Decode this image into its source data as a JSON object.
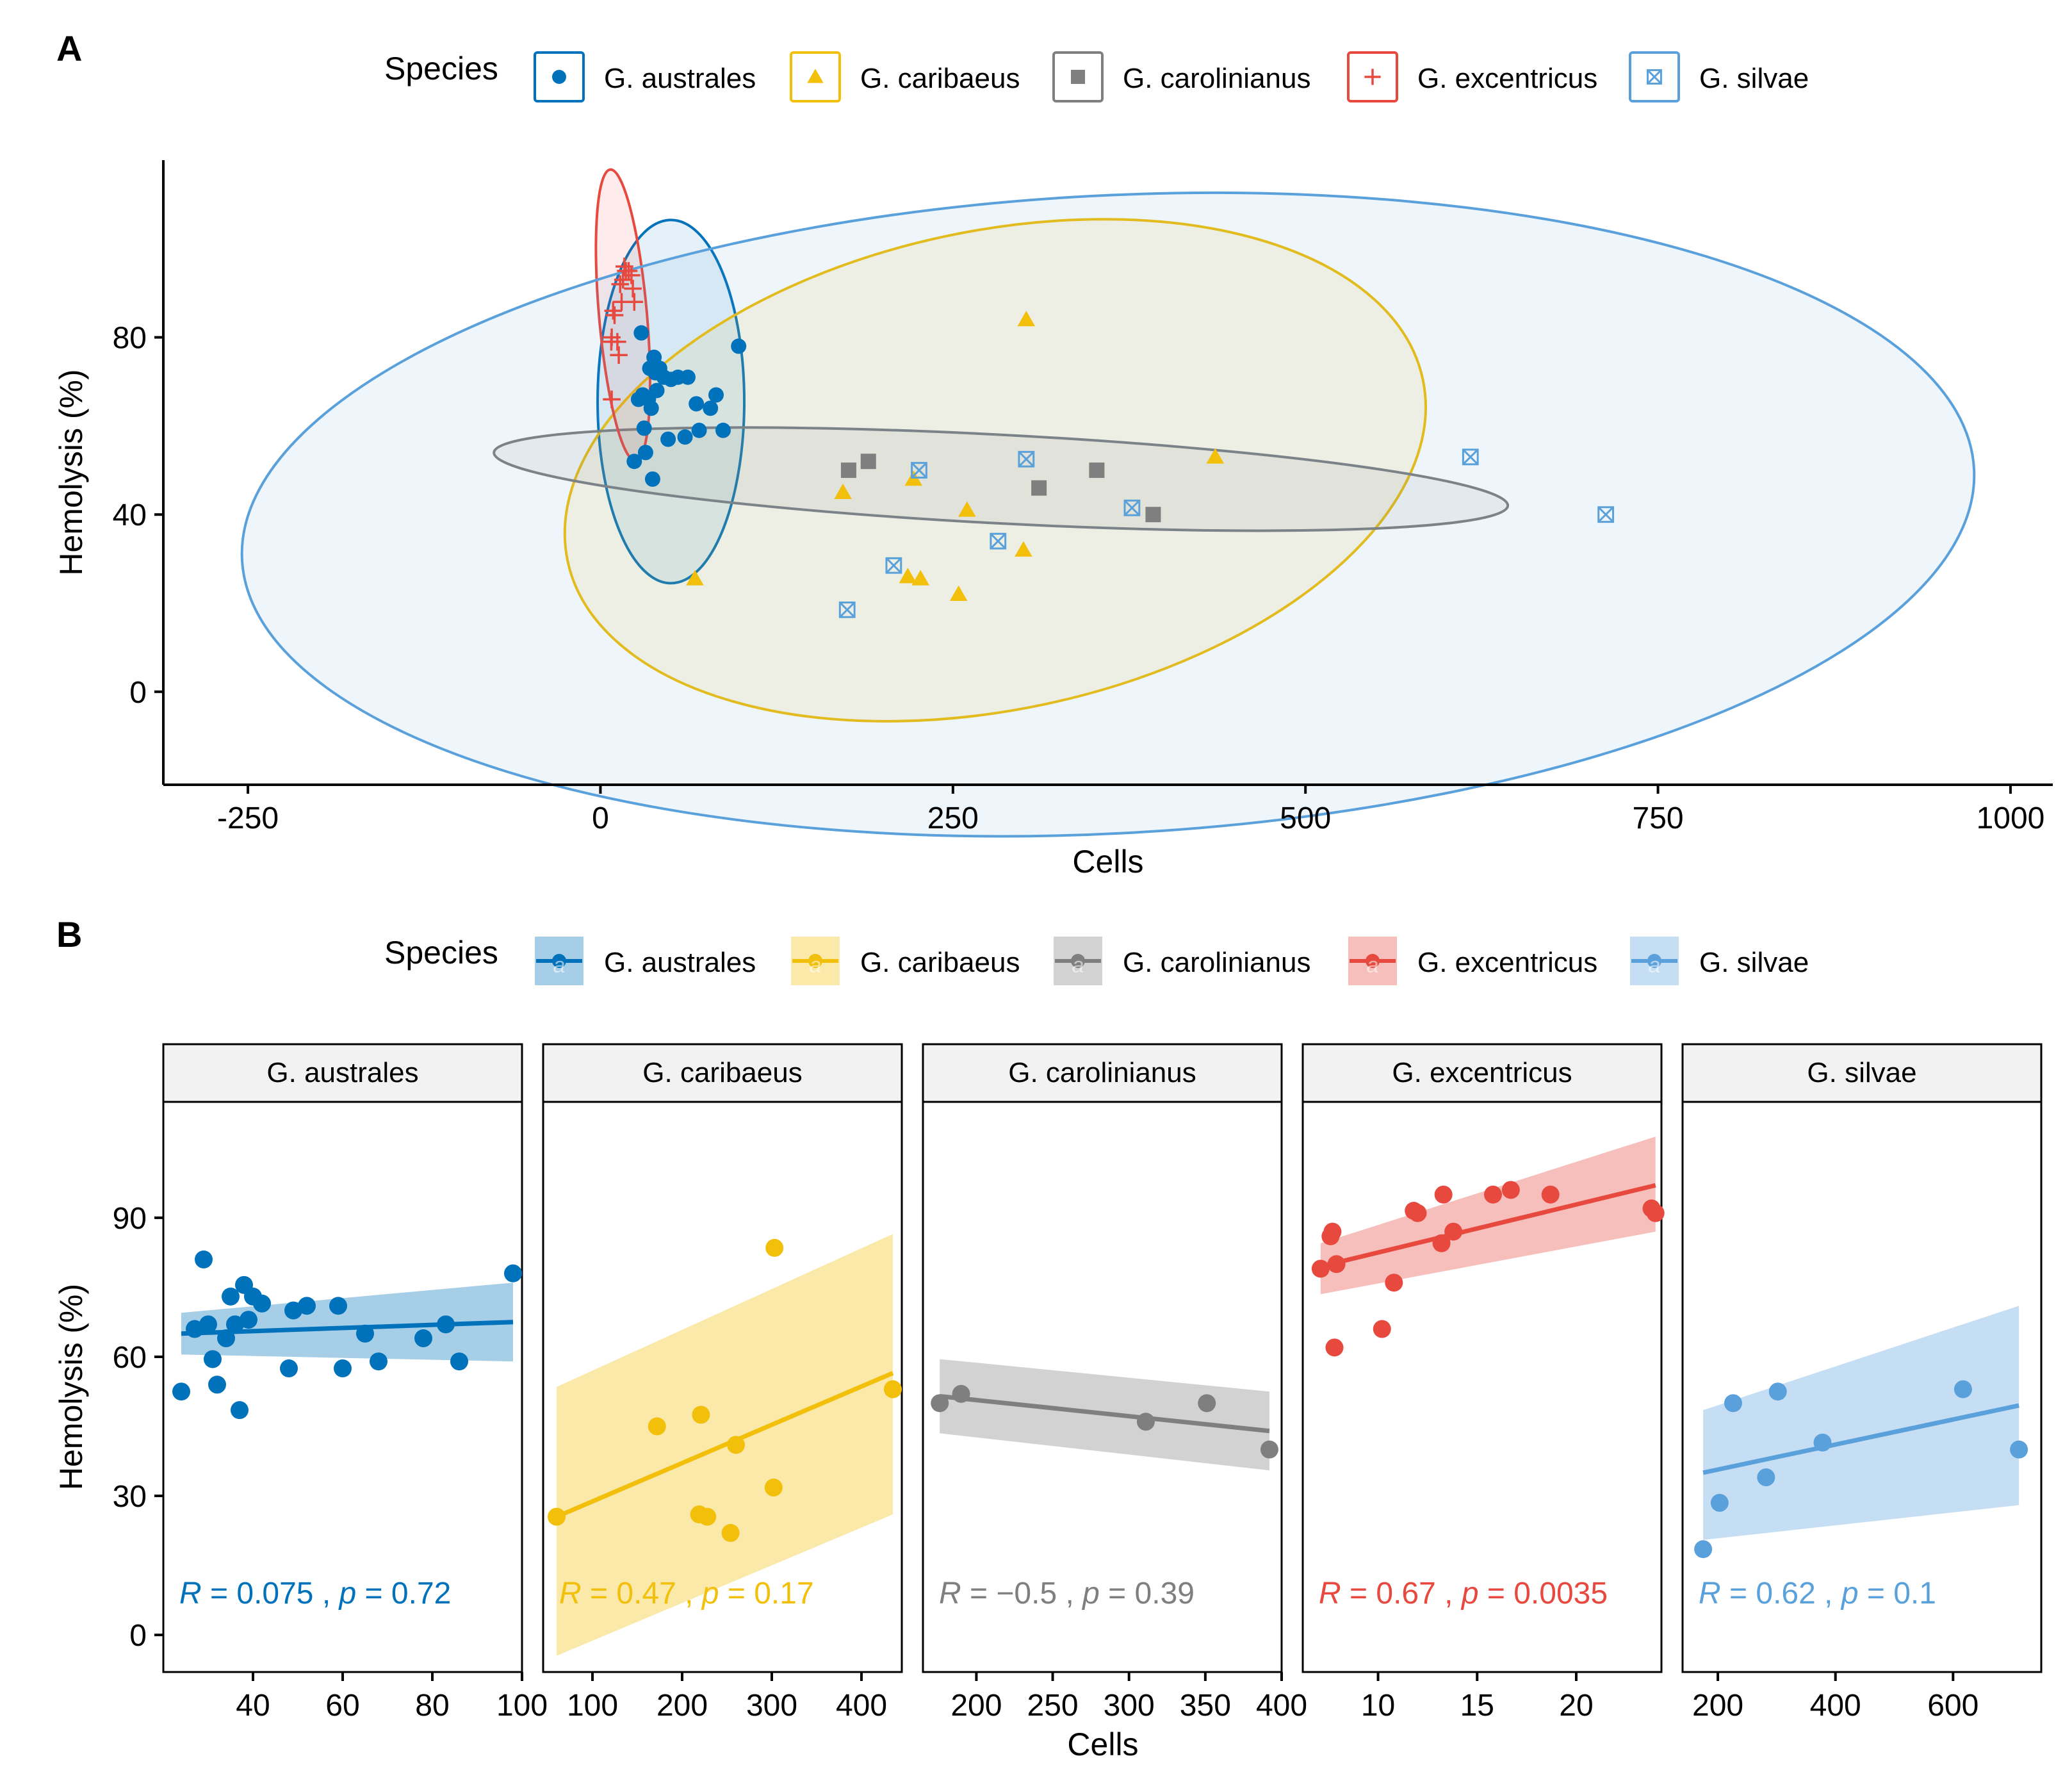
{
  "colors": {
    "G. australes": "#0072bb",
    "G. caribaeus": "#f2bf0a",
    "G. carolinianus": "#7f7f7f",
    "G. excentricus": "#e8493f",
    "G. silvae": "#5aa1dc"
  },
  "chart_data": [
    {
      "panel": "A",
      "type": "scatter",
      "xlabel": "Cells",
      "ylabel": "Hemolysis (%)",
      "xlim": [
        -310,
        1030
      ],
      "ylim": [
        -21,
        120
      ],
      "xticks": [
        -250,
        0,
        250,
        500,
        750,
        1000
      ],
      "xtick_labels": [
        "-250",
        "0",
        "250",
        "500",
        "750",
        "1000"
      ],
      "yticks": [
        0,
        40,
        80
      ],
      "ytick_labels": [
        "0",
        "40",
        "80"
      ],
      "legend": {
        "title": "Species",
        "position": "top",
        "entries": [
          "G. australes",
          "G. caribaeus",
          "G. carolinianus",
          "G. excentricus",
          "G. silvae"
        ]
      },
      "series": [
        {
          "name": "G. australes",
          "shape": "circle",
          "points": [
            [
              24,
              52
            ],
            [
              27,
              66
            ],
            [
              29,
              81
            ],
            [
              30,
              67
            ],
            [
              31,
              59.5
            ],
            [
              32,
              54
            ],
            [
              34,
              66
            ],
            [
              35,
              73
            ],
            [
              36,
              64
            ],
            [
              37,
              48
            ],
            [
              38,
              75.5
            ],
            [
              39,
              72
            ],
            [
              40,
              68
            ],
            [
              42,
              73
            ],
            [
              45,
              71
            ],
            [
              48,
              57
            ],
            [
              50,
              70.5
            ],
            [
              55,
              71
            ],
            [
              60,
              57.5
            ],
            [
              62,
              71
            ],
            [
              68,
              65
            ],
            [
              70,
              59
            ],
            [
              78,
              64
            ],
            [
              82,
              67
            ],
            [
              87,
              59
            ],
            [
              98,
              78
            ]
          ],
          "ellipse": {
            "cx": 50,
            "cy": 65.5,
            "rx": 52,
            "ry": 41,
            "angle": 0
          }
        },
        {
          "name": "G. caribaeus",
          "shape": "triangle",
          "points": [
            [
              67,
              25.5
            ],
            [
              172,
              45
            ],
            [
              218,
              26
            ],
            [
              222,
              48
            ],
            [
              227,
              25.5
            ],
            [
              254,
              22
            ],
            [
              260,
              41
            ],
            [
              300,
              32
            ],
            [
              302,
              84
            ],
            [
              436,
              53
            ]
          ],
          "ellipse": {
            "cx": 280,
            "cy": 50,
            "rx": 310,
            "ry": 54,
            "angle": 12
          }
        },
        {
          "name": "G. carolinianus",
          "shape": "square",
          "points": [
            [
              176,
              50
            ],
            [
              190,
              52
            ],
            [
              311,
              46
            ],
            [
              352,
              50
            ],
            [
              392,
              40
            ]
          ],
          "ellipse": {
            "cx": 284,
            "cy": 48,
            "rx": 360,
            "ry": 10,
            "angle": -3
          }
        },
        {
          "name": "G. excentricus",
          "shape": "plus",
          "points": [
            [
              7.7,
              79
            ],
            [
              8,
              66
            ],
            [
              8,
              80
            ],
            [
              9,
              86
            ],
            [
              10,
              85
            ],
            [
              12,
              79
            ],
            [
              13,
              76
            ],
            [
              14,
              92
            ],
            [
              15,
              88
            ],
            [
              16,
              93
            ],
            [
              17,
              96
            ],
            [
              18,
              95
            ],
            [
              20,
              95
            ],
            [
              22,
              94
            ],
            [
              23,
              91
            ],
            [
              24,
              88
            ]
          ],
          "ellipse": {
            "cx": 16,
            "cy": 85,
            "rx": 17,
            "ry": 33,
            "angle": 5
          }
        },
        {
          "name": "G. silvae",
          "shape": "square-x",
          "points": [
            [
              175,
              18.5
            ],
            [
              208,
              28.5
            ],
            [
              226,
              50
            ],
            [
              282,
              34
            ],
            [
              302,
              52.5
            ],
            [
              377,
              41.5
            ],
            [
              617,
              53
            ],
            [
              713,
              40
            ]
          ],
          "ellipse": {
            "cx": 360,
            "cy": 40,
            "rx": 615,
            "ry": 72,
            "angle": 3
          }
        }
      ]
    },
    {
      "panel": "B",
      "type": "scatter",
      "xlabel": "Cells",
      "ylabel": "Hemolysis (%)",
      "ylim": [
        -8,
        115
      ],
      "yticks": [
        0,
        30,
        60,
        90
      ],
      "ytick_labels": [
        "0",
        "30",
        "60",
        "90"
      ],
      "legend": {
        "title": "Species",
        "position": "top",
        "entries": [
          "G. australes",
          "G. caribaeus",
          "G. carolinianus",
          "G. excentricus",
          "G. silvae"
        ]
      },
      "facets": [
        {
          "name": "G. australes",
          "xlim": [
            20,
            100
          ],
          "xticks": [
            40,
            60,
            80,
            100
          ],
          "xtick_labels": [
            "40",
            "60",
            "80",
            "100"
          ],
          "points": [
            [
              24,
              52.5
            ],
            [
              27,
              66
            ],
            [
              29,
              81
            ],
            [
              30,
              67
            ],
            [
              31,
              59.5
            ],
            [
              32,
              54
            ],
            [
              34,
              64
            ],
            [
              35,
              73
            ],
            [
              36,
              67
            ],
            [
              37,
              48.5
            ],
            [
              38,
              75.5
            ],
            [
              39,
              68
            ],
            [
              40,
              73
            ],
            [
              42,
              71.5
            ],
            [
              48,
              57.5
            ],
            [
              49,
              70
            ],
            [
              52,
              71
            ],
            [
              59,
              71
            ],
            [
              60,
              57.5
            ],
            [
              65,
              65
            ],
            [
              68,
              59
            ],
            [
              78,
              64
            ],
            [
              83,
              67
            ],
            [
              86,
              59
            ],
            [
              98,
              78
            ]
          ],
          "fit": {
            "x": [
              24,
              98
            ],
            "y": [
              65,
              67.5
            ],
            "lo": [
              60.5,
              59
            ],
            "hi": [
              69.5,
              76
            ]
          },
          "stat": {
            "R": "0.075",
            "p": "0.72"
          }
        },
        {
          "name": "G. caribaeus",
          "xlim": [
            45,
            445
          ],
          "xticks": [
            100,
            200,
            300,
            400
          ],
          "xtick_labels": [
            "100",
            "200",
            "300",
            "400"
          ],
          "points": [
            [
              60,
              25.5
            ],
            [
              172,
              45
            ],
            [
              219,
              26
            ],
            [
              221,
              47.5
            ],
            [
              228,
              25.5
            ],
            [
              254,
              22
            ],
            [
              260,
              41
            ],
            [
              302,
              31.8
            ],
            [
              303,
              83.5
            ],
            [
              435,
              53
            ]
          ],
          "fit": {
            "x": [
              60,
              435
            ],
            "y": [
              25.5,
              56.5
            ],
            "lo": [
              -4.5,
              26
            ],
            "hi": [
              53.5,
              86.5
            ]
          },
          "stat": {
            "R": "0.47",
            "p": "0.17"
          }
        },
        {
          "name": "G. carolinianus",
          "xlim": [
            165,
            400
          ],
          "xticks": [
            200,
            250,
            300,
            350,
            400
          ],
          "xtick_labels": [
            "200",
            "250",
            "300",
            "350",
            "400"
          ],
          "points": [
            [
              176,
              50
            ],
            [
              190,
              52
            ],
            [
              311,
              46
            ],
            [
              351,
              50
            ],
            [
              392,
              40
            ]
          ],
          "fit": {
            "x": [
              176,
              392
            ],
            "y": [
              51.5,
              44
            ],
            "lo": [
              43.5,
              35.5
            ],
            "hi": [
              59.5,
              52.5
            ]
          },
          "stat": {
            "R": "−0.5",
            "p": "0.39"
          }
        },
        {
          "name": "G. excentricus",
          "xlim": [
            6.2,
            24.3
          ],
          "xticks": [
            10,
            15,
            20
          ],
          "xtick_labels": [
            "10",
            "15",
            "20"
          ],
          "points": [
            [
              7.1,
              79
            ],
            [
              7.6,
              86
            ],
            [
              7.7,
              87
            ],
            [
              7.8,
              62
            ],
            [
              7.9,
              80
            ],
            [
              10.2,
              66
            ],
            [
              10.8,
              76
            ],
            [
              11.8,
              91.5
            ],
            [
              12,
              91
            ],
            [
              13.2,
              84.5
            ],
            [
              13.3,
              95
            ],
            [
              13.8,
              87
            ],
            [
              15.8,
              95
            ],
            [
              16.7,
              96
            ],
            [
              18.7,
              95
            ],
            [
              23.8,
              92
            ],
            [
              24,
              91
            ]
          ],
          "fit": {
            "x": [
              7.1,
              24
            ],
            "y": [
              79.5,
              97
            ],
            "lo": [
              73.5,
              87
            ],
            "hi": [
              84.5,
              107.5
            ]
          },
          "stat": {
            "R": "0.67",
            "p": "0.0035"
          }
        },
        {
          "name": "G. silvae",
          "xlim": [
            140,
            750
          ],
          "xticks": [
            200,
            400,
            600
          ],
          "xtick_labels": [
            "200",
            "400",
            "600"
          ],
          "points": [
            [
              175,
              18.5
            ],
            [
              203,
              28.5
            ],
            [
              226,
              50
            ],
            [
              282,
              34
            ],
            [
              302,
              52.5
            ],
            [
              378,
              41.5
            ],
            [
              617,
              53
            ],
            [
              712,
              40
            ]
          ],
          "fit": {
            "x": [
              175,
              712
            ],
            "y": [
              35,
              49.5
            ],
            "lo": [
              20.5,
              28
            ],
            "hi": [
              48.5,
              71
            ]
          },
          "stat": {
            "R": "0.62",
            "p": "0.1"
          }
        }
      ]
    }
  ],
  "labels": {
    "panel_a": "A",
    "panel_b": "B",
    "legend_key_glyph": "a"
  }
}
